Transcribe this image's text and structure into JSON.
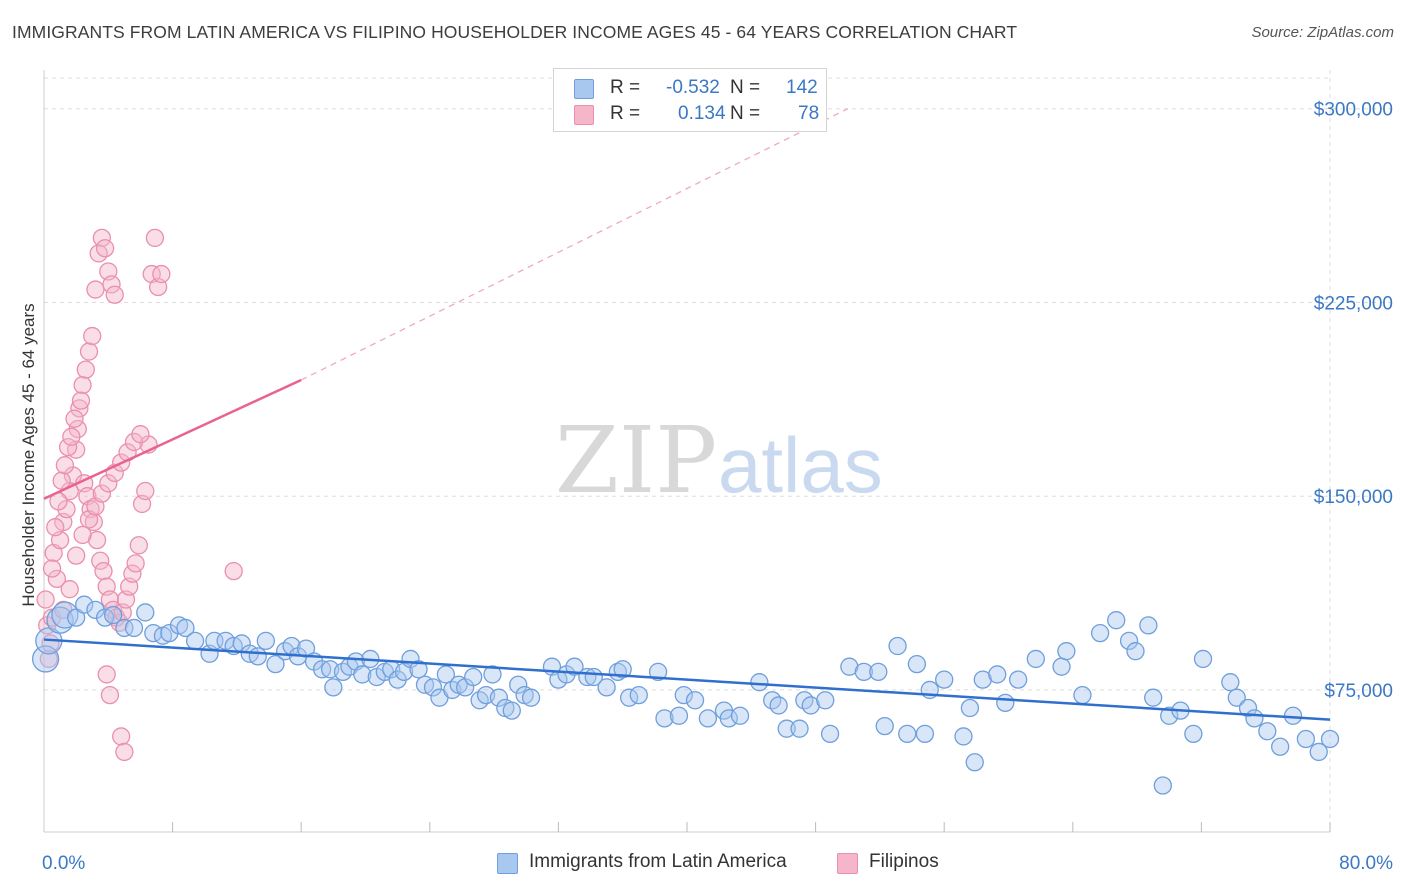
{
  "title": "IMMIGRANTS FROM LATIN AMERICA VS FILIPINO HOUSEHOLDER INCOME AGES 45 - 64 YEARS CORRELATION CHART",
  "source": "Source: ZipAtlas.com",
  "watermark": {
    "zip": "ZIP",
    "atlas": "atlas"
  },
  "colors": {
    "blue_fill": "#a9c8ef",
    "blue_stroke": "#6f9fdc",
    "blue_line": "#2f6fce",
    "pink_fill": "#f5b6ca",
    "pink_stroke": "#ea8fae",
    "pink_line": "#e8648f",
    "axis_text": "#3b78c4",
    "grid": "#dddddd"
  },
  "legend": {
    "rows": [
      {
        "r_label": "R =",
        "r_value": "-0.532",
        "n_label": "N =",
        "n_value": "142"
      },
      {
        "r_label": "R =",
        "r_value": "0.134",
        "n_label": "N =",
        "n_value": "78"
      }
    ]
  },
  "bottom_legend": [
    "Immigrants from Latin America",
    "Filipinos"
  ],
  "chart_data": {
    "type": "scatter",
    "title": "IMMIGRANTS FROM LATIN AMERICA VS FILIPINO HOUSEHOLDER INCOME AGES 45 - 64 YEARS CORRELATION CHART",
    "xlabel": "",
    "ylabel": "Householder Income Ages 45 - 64 years",
    "xlim": [
      0,
      80
    ],
    "ylim": [
      20000,
      315000
    ],
    "x_tick_labels": [
      "0.0%",
      "80.0%"
    ],
    "y_ticks": [
      75000,
      150000,
      225000,
      300000
    ],
    "y_tick_labels": [
      "$75,000",
      "$150,000",
      "$225,000",
      "$300,000"
    ],
    "grid": true,
    "legend_position": "top-center",
    "series": [
      {
        "name": "Immigrants from Latin America",
        "r": -0.532,
        "n": 142,
        "trend": {
          "x": [
            0,
            80
          ],
          "y": [
            94500,
            63500
          ],
          "style": "solid"
        },
        "points": [
          [
            0.1,
            87000
          ],
          [
            0.3,
            94000
          ],
          [
            1.0,
            102000
          ],
          [
            1.3,
            104000
          ],
          [
            2.0,
            103000
          ],
          [
            2.5,
            108000
          ],
          [
            3.2,
            106000
          ],
          [
            3.8,
            103000
          ],
          [
            4.3,
            104000
          ],
          [
            5.0,
            99000
          ],
          [
            5.6,
            99000
          ],
          [
            6.3,
            105000
          ],
          [
            6.8,
            97000
          ],
          [
            7.4,
            96000
          ],
          [
            7.8,
            97000
          ],
          [
            8.4,
            100000
          ],
          [
            8.8,
            99000
          ],
          [
            9.4,
            94000
          ],
          [
            10.3,
            89000
          ],
          [
            10.6,
            94000
          ],
          [
            11.3,
            94000
          ],
          [
            11.8,
            92000
          ],
          [
            12.3,
            93000
          ],
          [
            12.8,
            89000
          ],
          [
            13.3,
            88000
          ],
          [
            13.8,
            94000
          ],
          [
            14.4,
            85000
          ],
          [
            15.0,
            90000
          ],
          [
            15.4,
            92000
          ],
          [
            15.8,
            88000
          ],
          [
            16.3,
            91000
          ],
          [
            16.8,
            86000
          ],
          [
            17.3,
            83000
          ],
          [
            17.8,
            83000
          ],
          [
            18.0,
            76000
          ],
          [
            18.6,
            82000
          ],
          [
            19.0,
            84000
          ],
          [
            19.4,
            86000
          ],
          [
            19.8,
            81000
          ],
          [
            20.3,
            87000
          ],
          [
            20.7,
            80000
          ],
          [
            21.2,
            82000
          ],
          [
            21.6,
            83000
          ],
          [
            22.0,
            79000
          ],
          [
            22.4,
            82000
          ],
          [
            22.8,
            87000
          ],
          [
            23.3,
            83000
          ],
          [
            23.7,
            77000
          ],
          [
            24.2,
            76000
          ],
          [
            24.6,
            72000
          ],
          [
            25.0,
            81000
          ],
          [
            25.4,
            75000
          ],
          [
            25.8,
            77000
          ],
          [
            26.2,
            76000
          ],
          [
            26.7,
            80000
          ],
          [
            27.1,
            71000
          ],
          [
            27.5,
            73000
          ],
          [
            27.9,
            81000
          ],
          [
            28.3,
            72000
          ],
          [
            28.7,
            68000
          ],
          [
            29.1,
            67000
          ],
          [
            29.5,
            77000
          ],
          [
            29.9,
            73000
          ],
          [
            30.3,
            72000
          ],
          [
            31.6,
            84000
          ],
          [
            32.0,
            79000
          ],
          [
            32.5,
            81000
          ],
          [
            33.0,
            84000
          ],
          [
            33.8,
            80000
          ],
          [
            34.2,
            80000
          ],
          [
            35.0,
            76000
          ],
          [
            35.7,
            82000
          ],
          [
            36.0,
            83000
          ],
          [
            36.4,
            72000
          ],
          [
            37.0,
            73000
          ],
          [
            38.2,
            82000
          ],
          [
            39.8,
            73000
          ],
          [
            38.6,
            64000
          ],
          [
            39.5,
            65000
          ],
          [
            40.5,
            71000
          ],
          [
            41.3,
            64000
          ],
          [
            42.3,
            67000
          ],
          [
            42.6,
            64000
          ],
          [
            43.3,
            65000
          ],
          [
            44.5,
            78000
          ],
          [
            45.3,
            71000
          ],
          [
            45.7,
            69000
          ],
          [
            46.2,
            60000
          ],
          [
            47.0,
            60000
          ],
          [
            47.3,
            71000
          ],
          [
            47.7,
            69000
          ],
          [
            48.6,
            71000
          ],
          [
            48.9,
            58000
          ],
          [
            50.1,
            84000
          ],
          [
            51.0,
            82000
          ],
          [
            51.9,
            82000
          ],
          [
            52.3,
            61000
          ],
          [
            53.1,
            92000
          ],
          [
            53.7,
            58000
          ],
          [
            54.3,
            85000
          ],
          [
            54.8,
            58000
          ],
          [
            55.1,
            75000
          ],
          [
            56.0,
            79000
          ],
          [
            57.2,
            57000
          ],
          [
            57.6,
            68000
          ],
          [
            57.9,
            47000
          ],
          [
            58.4,
            79000
          ],
          [
            59.3,
            81000
          ],
          [
            59.8,
            70000
          ],
          [
            60.6,
            79000
          ],
          [
            61.7,
            87000
          ],
          [
            63.3,
            84000
          ],
          [
            63.6,
            90000
          ],
          [
            64.6,
            73000
          ],
          [
            65.7,
            97000
          ],
          [
            66.7,
            102000
          ],
          [
            67.5,
            94000
          ],
          [
            67.9,
            90000
          ],
          [
            68.7,
            100000
          ],
          [
            69.0,
            72000
          ],
          [
            69.6,
            38000
          ],
          [
            70.0,
            65000
          ],
          [
            70.7,
            67000
          ],
          [
            71.5,
            58000
          ],
          [
            72.1,
            87000
          ],
          [
            73.8,
            78000
          ],
          [
            74.2,
            72000
          ],
          [
            74.9,
            68000
          ],
          [
            75.3,
            64000
          ],
          [
            76.1,
            59000
          ],
          [
            76.9,
            53000
          ],
          [
            77.7,
            65000
          ],
          [
            78.5,
            56000
          ],
          [
            79.3,
            51000
          ],
          [
            80.0,
            56000
          ]
        ]
      },
      {
        "name": "Filipinos",
        "r": 0.134,
        "n": 78,
        "trend": {
          "x": [
            0,
            16
          ],
          "y": [
            149000,
            195000
          ],
          "style": "solid",
          "dashed_extension": {
            "x": [
              16,
              50
            ],
            "y": [
              195000,
              300000
            ]
          }
        },
        "points": [
          [
            0.1,
            110000
          ],
          [
            0.2,
            100000
          ],
          [
            0.3,
            87000
          ],
          [
            0.4,
            93000
          ],
          [
            0.5,
            103000
          ],
          [
            0.6,
            128000
          ],
          [
            0.8,
            118000
          ],
          [
            1.0,
            133000
          ],
          [
            1.2,
            140000
          ],
          [
            1.4,
            145000
          ],
          [
            1.6,
            152000
          ],
          [
            1.8,
            158000
          ],
          [
            2.0,
            168000
          ],
          [
            2.1,
            176000
          ],
          [
            2.2,
            184000
          ],
          [
            2.4,
            193000
          ],
          [
            2.6,
            199000
          ],
          [
            2.8,
            206000
          ],
          [
            3.0,
            212000
          ],
          [
            3.2,
            230000
          ],
          [
            3.4,
            244000
          ],
          [
            3.6,
            250000
          ],
          [
            3.8,
            246000
          ],
          [
            4.0,
            237000
          ],
          [
            4.2,
            232000
          ],
          [
            4.4,
            228000
          ],
          [
            0.7,
            138000
          ],
          [
            0.9,
            148000
          ],
          [
            1.1,
            156000
          ],
          [
            1.3,
            162000
          ],
          [
            1.5,
            169000
          ],
          [
            1.7,
            173000
          ],
          [
            1.9,
            180000
          ],
          [
            2.3,
            187000
          ],
          [
            2.5,
            155000
          ],
          [
            2.7,
            150000
          ],
          [
            2.9,
            145000
          ],
          [
            3.1,
            140000
          ],
          [
            3.3,
            133000
          ],
          [
            3.5,
            125000
          ],
          [
            3.7,
            121000
          ],
          [
            3.9,
            115000
          ],
          [
            4.1,
            110000
          ],
          [
            4.3,
            106000
          ],
          [
            4.5,
            103000
          ],
          [
            4.7,
            101000
          ],
          [
            4.9,
            105000
          ],
          [
            5.1,
            110000
          ],
          [
            5.3,
            115000
          ],
          [
            5.5,
            120000
          ],
          [
            5.7,
            124000
          ],
          [
            5.9,
            131000
          ],
          [
            6.1,
            147000
          ],
          [
            6.3,
            152000
          ],
          [
            6.5,
            170000
          ],
          [
            6.7,
            236000
          ],
          [
            6.9,
            250000
          ],
          [
            7.1,
            231000
          ],
          [
            7.3,
            236000
          ],
          [
            3.9,
            81000
          ],
          [
            4.1,
            73000
          ],
          [
            4.8,
            57000
          ],
          [
            5.0,
            51000
          ],
          [
            1.2,
            106000
          ],
          [
            1.6,
            114000
          ],
          [
            2.0,
            127000
          ],
          [
            2.4,
            135000
          ],
          [
            2.8,
            141000
          ],
          [
            3.2,
            146000
          ],
          [
            3.6,
            151000
          ],
          [
            4.0,
            155000
          ],
          [
            4.4,
            159000
          ],
          [
            4.8,
            163000
          ],
          [
            5.2,
            167000
          ],
          [
            5.6,
            171000
          ],
          [
            6.0,
            174000
          ],
          [
            11.8,
            121000
          ],
          [
            0.5,
            122000
          ]
        ]
      }
    ]
  }
}
